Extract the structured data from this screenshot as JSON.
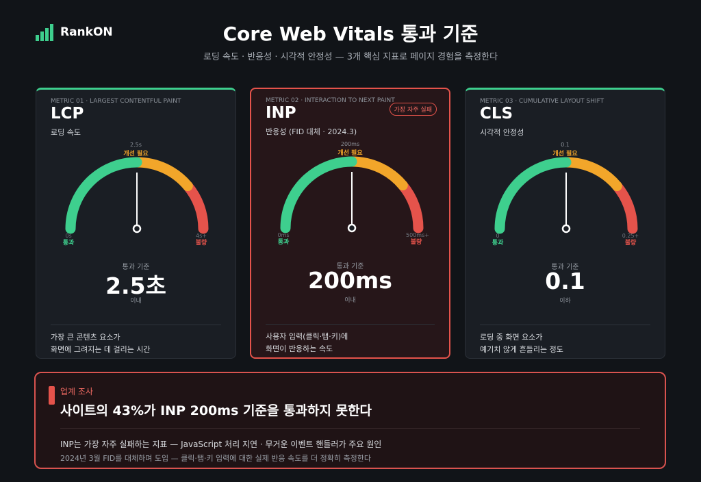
{
  "brand": "RankON",
  "header": {
    "title": "Core Web Vitals 통과 기준",
    "subtitle": "로딩 속도 · 반응성 · 시각적 안정성 — 3개 핵심 지표로 페이지 경험을 측정한다"
  },
  "cards": [
    {
      "eyebrow": "METRIC 01 · LARGEST CONTENTFUL PAINT",
      "name": "LCP",
      "desc": "로딩 속도",
      "gauge": {
        "threshold": "2.5s",
        "zone": "개선 필요",
        "min": "0s",
        "min_label": "통과",
        "max": "4s+",
        "max_label": "불량"
      },
      "pass_label": "통과 기준",
      "pass_value": "2.5초",
      "pass_unit": "이내",
      "note": [
        "가장 큰 콘텐츠 요소가",
        "화면에 그려지는 데 걸리는 시간"
      ]
    },
    {
      "eyebrow": "METRIC 02 · INTERACTION TO NEXT PAINT",
      "name": "INP",
      "desc": "반응성 (FID 대체 · 2024.3)",
      "badge": "가장 자주 실패",
      "gauge": {
        "threshold": "200ms",
        "zone": "개선 필요",
        "min": "0ms",
        "min_label": "통과",
        "max": "500ms+",
        "max_label": "불량"
      },
      "pass_label": "통과 기준",
      "pass_value": "200ms",
      "pass_unit": "이내",
      "note": [
        "사용자 입력(클릭·탭·키)에",
        "화면이 반응하는 속도"
      ]
    },
    {
      "eyebrow": "METRIC 03 · CUMULATIVE LAYOUT SHIFT",
      "name": "CLS",
      "desc": "시각적 안정성",
      "gauge": {
        "threshold": "0.1",
        "zone": "개선 필요",
        "min": "0",
        "min_label": "통과",
        "max": "0.25+",
        "max_label": "불량"
      },
      "pass_label": "통과 기준",
      "pass_value": "0.1",
      "pass_unit": "이하",
      "note": [
        "로딩 중 화면 요소가",
        "예기치 않게 흔들리는 정도"
      ]
    }
  ],
  "callout": {
    "tag": "업계 조사",
    "title": "사이트의 43%가 INP 200ms 기준을 통과하지 못한다",
    "lines": [
      "INP는 가장 자주 실패하는 지표 — JavaScript 처리 지연 · 무거운 이벤트 핸들러가 주요 원인",
      "2024년 3월 FID를 대체하며 도입 — 클릭·탭·키 입력에 대한 실제 반응 속도를 더 정확히 측정한다"
    ]
  }
}
